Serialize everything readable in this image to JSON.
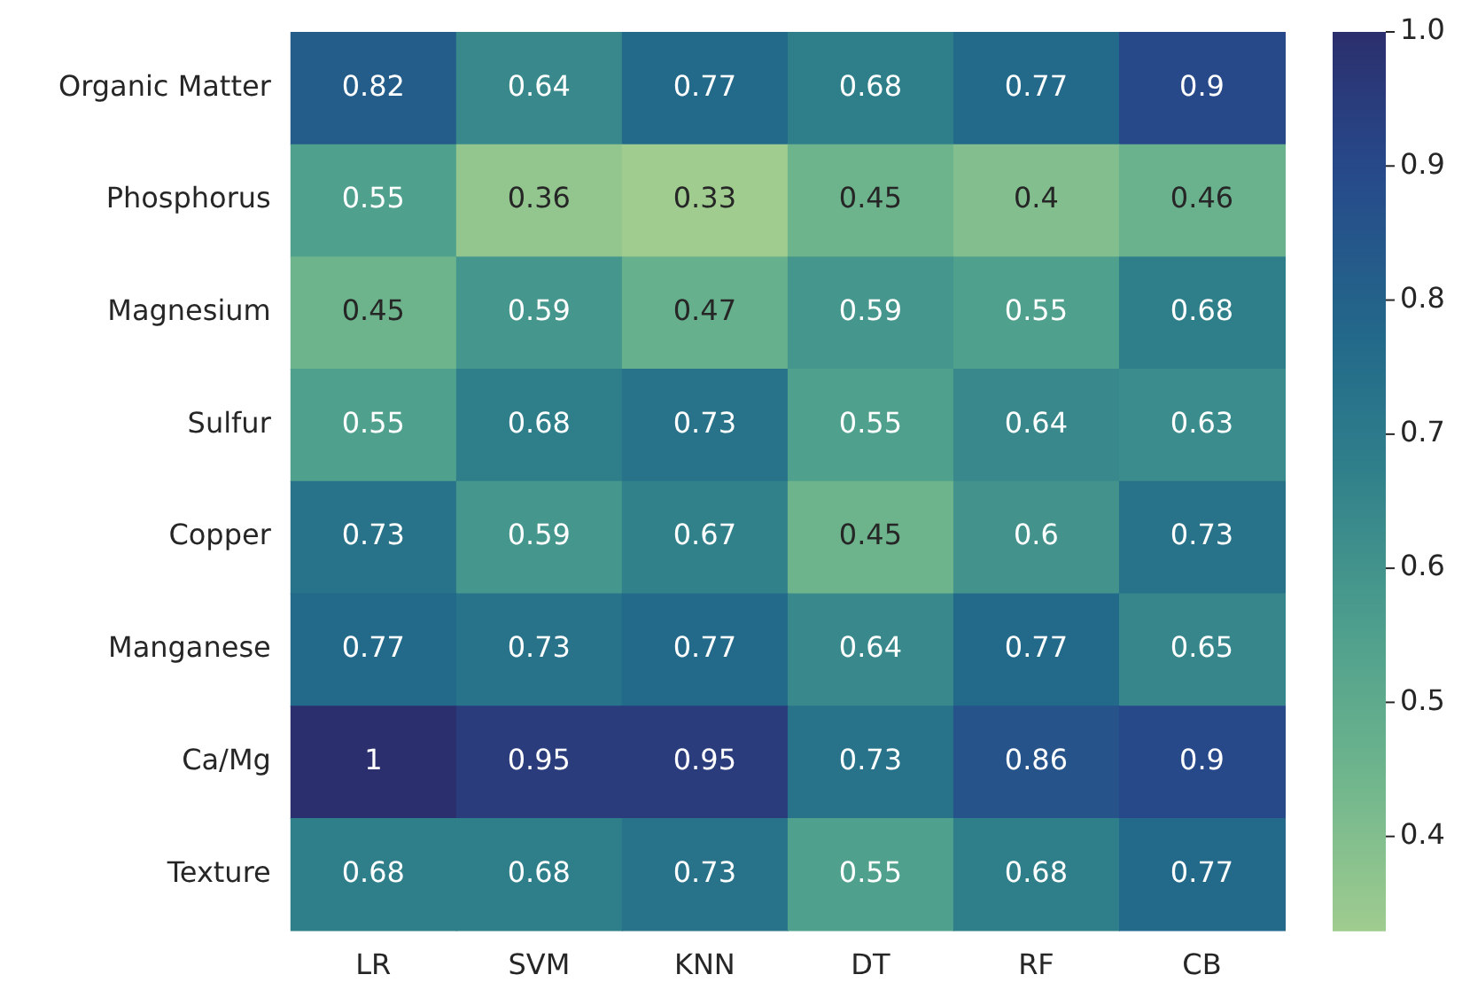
{
  "chart_data": {
    "type": "heatmap",
    "categories": [
      "LR",
      "SVM",
      "KNN",
      "DT",
      "RF",
      "CB"
    ],
    "y_categories": [
      "Organic Matter",
      "Phosphorus",
      "Magnesium",
      "Sulfur",
      "Copper",
      "Manganese",
      "Ca/Mg",
      "Texture"
    ],
    "cells": [
      [
        0.82,
        0.64,
        0.77,
        0.68,
        0.77,
        0.9
      ],
      [
        0.55,
        0.36,
        0.33,
        0.45,
        0.4,
        0.46
      ],
      [
        0.45,
        0.59,
        0.47,
        0.59,
        0.55,
        0.68
      ],
      [
        0.55,
        0.68,
        0.73,
        0.55,
        0.64,
        0.63
      ],
      [
        0.73,
        0.59,
        0.67,
        0.45,
        0.6,
        0.73
      ],
      [
        0.77,
        0.73,
        0.77,
        0.64,
        0.77,
        0.65
      ],
      [
        1,
        0.95,
        0.95,
        0.73,
        0.86,
        0.9
      ],
      [
        0.68,
        0.68,
        0.73,
        0.55,
        0.68,
        0.77
      ]
    ],
    "data_labels": true,
    "clim": [
      0.33,
      1.0
    ],
    "cticks": [
      0.4,
      0.5,
      0.6,
      0.7,
      0.8,
      0.9,
      {
        "value": 1,
        "label": "1.0"
      }
    ]
  }
}
